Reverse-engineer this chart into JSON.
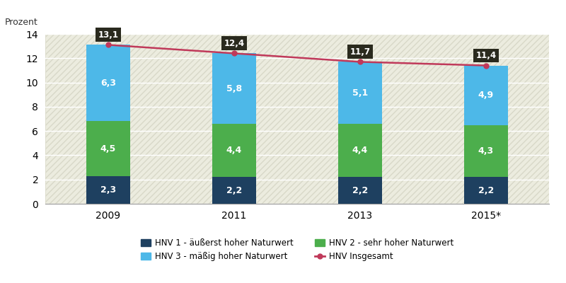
{
  "years": [
    "2009",
    "2011",
    "2013",
    "2015*"
  ],
  "x_positions": [
    0,
    1,
    2,
    3
  ],
  "hnv1": [
    2.3,
    2.2,
    2.2,
    2.2
  ],
  "hnv2": [
    4.5,
    4.4,
    4.4,
    4.3
  ],
  "hnv3": [
    6.3,
    5.8,
    5.1,
    4.9
  ],
  "hnv_total": [
    13.1,
    12.4,
    11.7,
    11.4
  ],
  "color_hnv1": "#1e4060",
  "color_hnv2": "#4cae4c",
  "color_hnv3": "#4db8e8",
  "color_line": "#c0395a",
  "bar_width": 0.35,
  "ylim": [
    0,
    14
  ],
  "yticks": [
    0,
    2,
    4,
    6,
    8,
    10,
    12,
    14
  ],
  "ylabel": "Prozent",
  "legend_hnv1": "HNV 1 - äußerst hoher Naturwert",
  "legend_hnv2": "HNV 2 - sehr hoher Naturwert",
  "legend_hnv3": "HNV 3 - mäßig hoher Naturwert",
  "legend_line": "HNV Insgesamt",
  "bg_color": "#ececdf",
  "hatch_color": "#d8d8c8",
  "label_fontsize": 9,
  "annotation_fontsize": 8.5,
  "xlim": [
    -0.5,
    3.5
  ]
}
